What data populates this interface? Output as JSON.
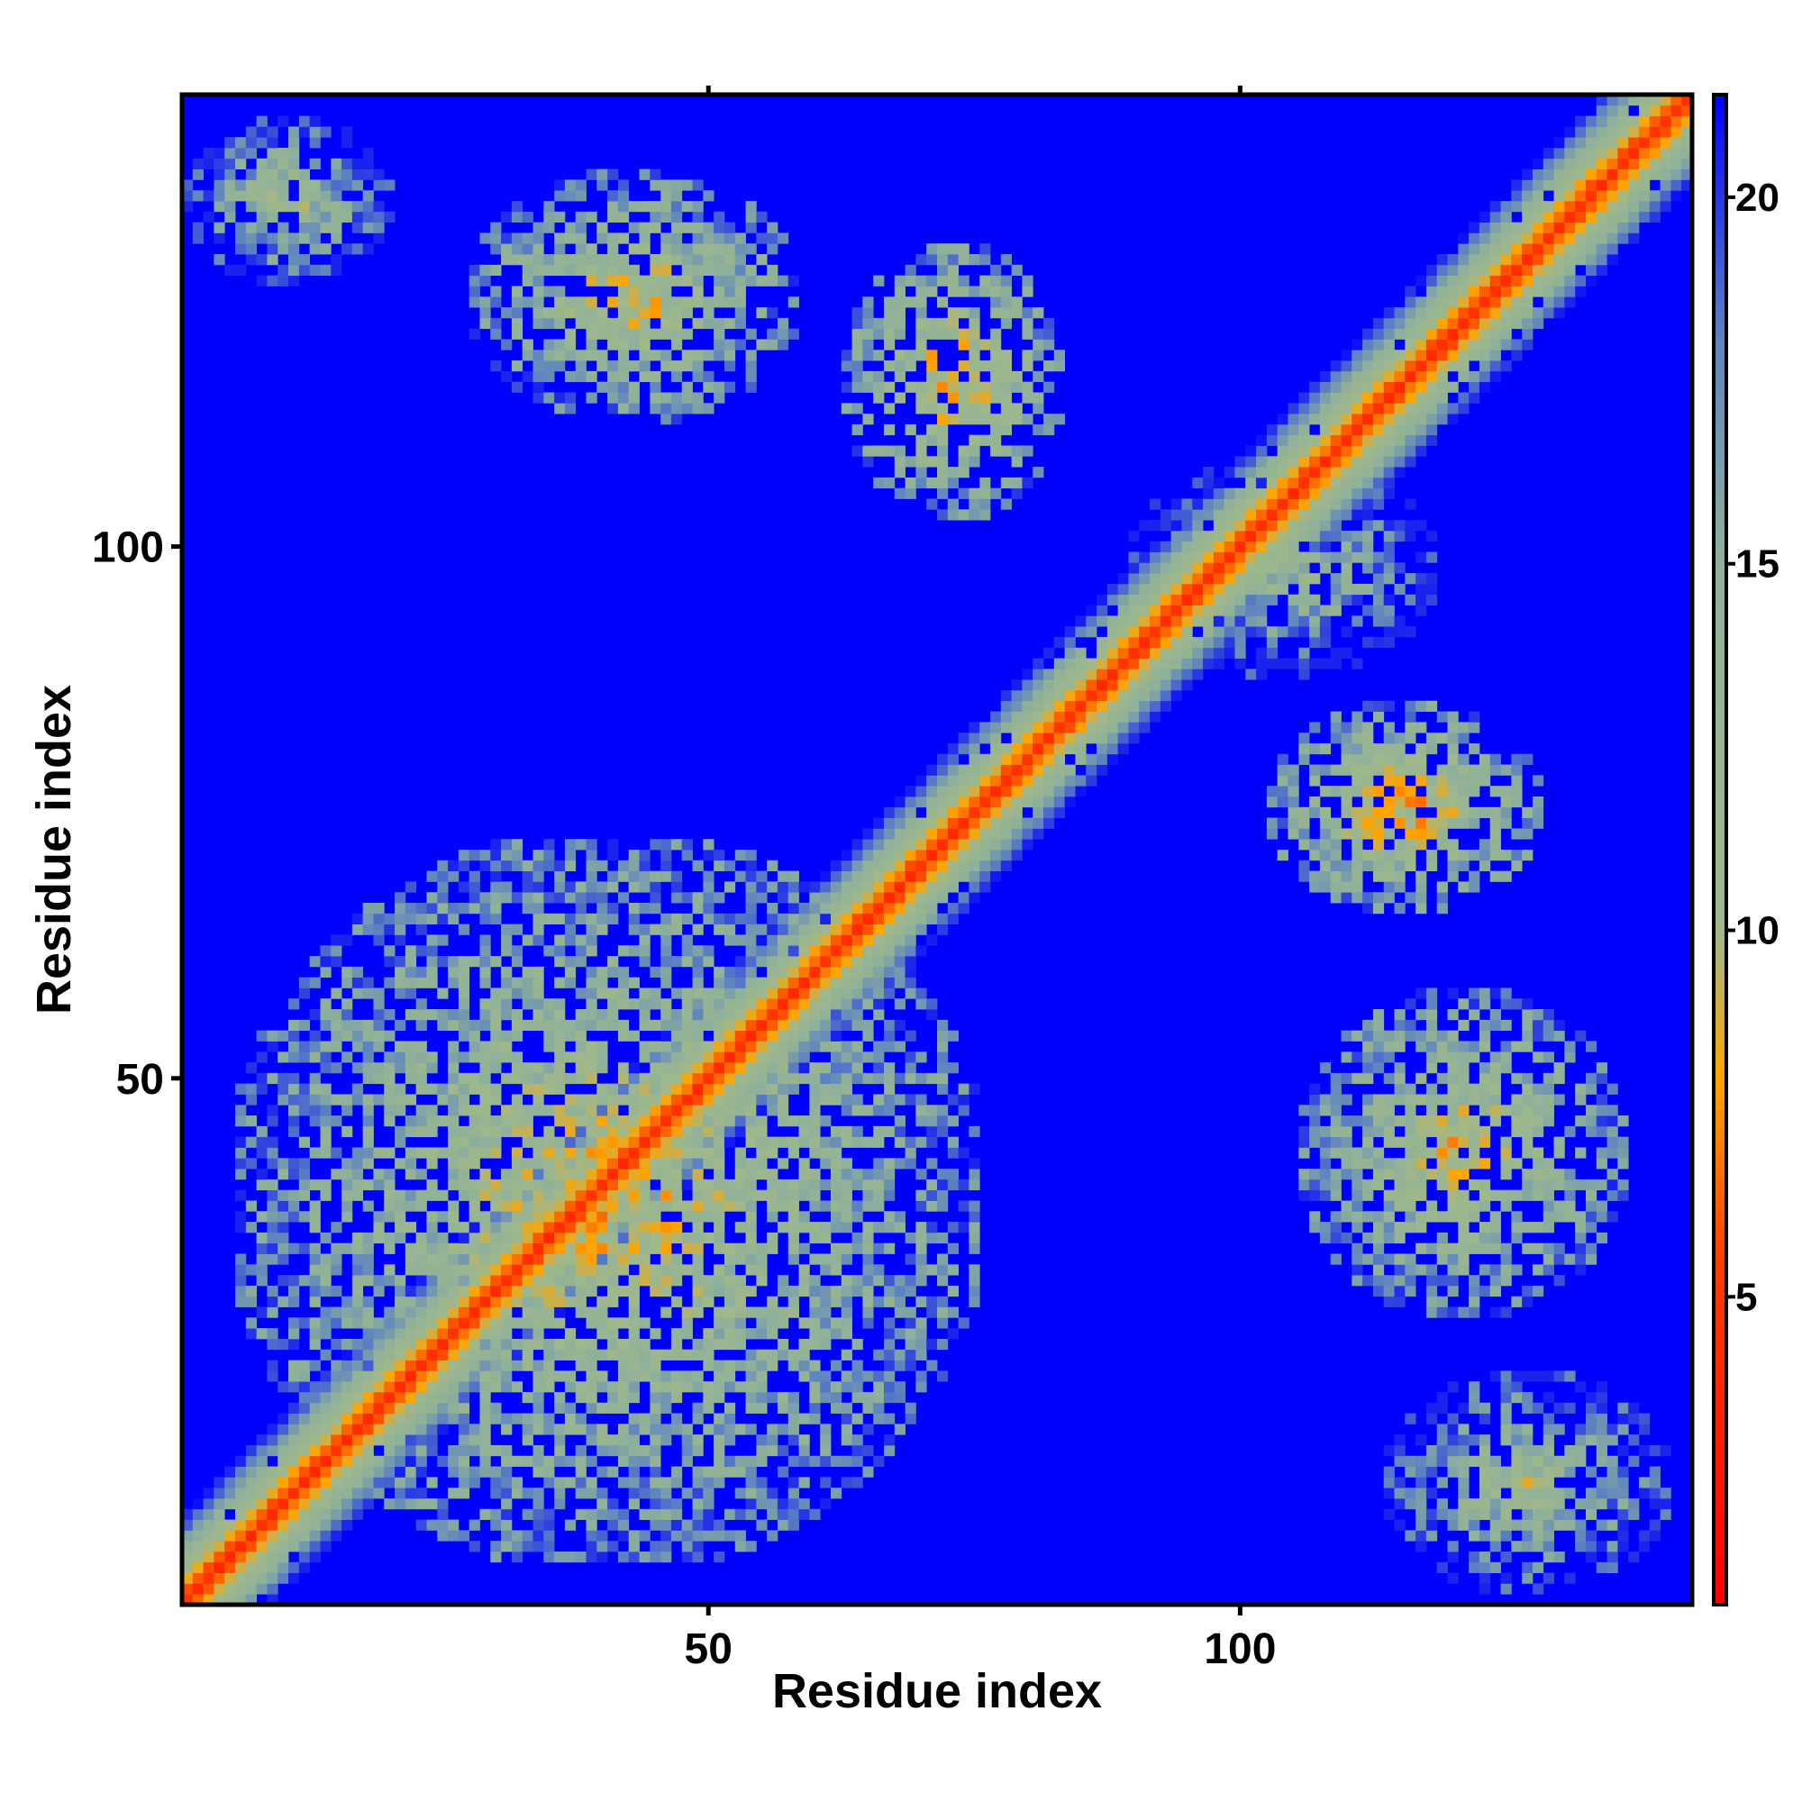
{
  "chart_data": {
    "type": "heatmap",
    "title": "",
    "xlabel": "Residue index",
    "ylabel": "Residue index",
    "n_residues": 142,
    "xlim": [
      1,
      142
    ],
    "ylim": [
      1,
      142
    ],
    "x_ticks": [
      50,
      100
    ],
    "y_ticks": [
      50,
      100
    ],
    "colorbar": {
      "ticks": [
        5,
        10,
        15,
        20
      ],
      "range": [
        0.8,
        21.4
      ],
      "colors": [
        {
          "value": 0.8,
          "color": "#ff0000"
        },
        {
          "value": 5.5,
          "color": "#ff3c00"
        },
        {
          "value": 8.0,
          "color": "#ffa500"
        },
        {
          "value": 10.0,
          "color": "#a0b88a"
        },
        {
          "value": 15.0,
          "color": "#8fb09a"
        },
        {
          "value": 18.0,
          "color": "#5e85c0"
        },
        {
          "value": 21.4,
          "color": "#0000ff"
        }
      ],
      "background_color": "#0000ff"
    },
    "diagonal_band": {
      "core_distance": 3.8,
      "band_halfwidth_residues": 8
    },
    "contact_blocks": [
      {
        "x_range": [
          1,
          20
        ],
        "y_range": [
          125,
          140
        ],
        "min_value": 8
      },
      {
        "x_range": [
          28,
          58
        ],
        "y_range": [
          112,
          135
        ],
        "min_value": 6
      },
      {
        "x_range": [
          63,
          83
        ],
        "y_range": [
          103,
          128
        ],
        "min_value": 5
      },
      {
        "x_range": [
          6,
          75
        ],
        "y_range": [
          5,
          72
        ],
        "min_value": 6
      },
      {
        "x_range": [
          103,
          128
        ],
        "y_range": [
          66,
          85
        ],
        "min_value": 5
      },
      {
        "x_range": [
          106,
          136
        ],
        "y_range": [
          28,
          58
        ],
        "min_value": 6
      },
      {
        "x_range": [
          114,
          140
        ],
        "y_range": [
          2,
          22
        ],
        "min_value": 8
      },
      {
        "x_range": [
          90,
          118
        ],
        "y_range": [
          88,
          108
        ],
        "min_value": 9
      }
    ]
  }
}
